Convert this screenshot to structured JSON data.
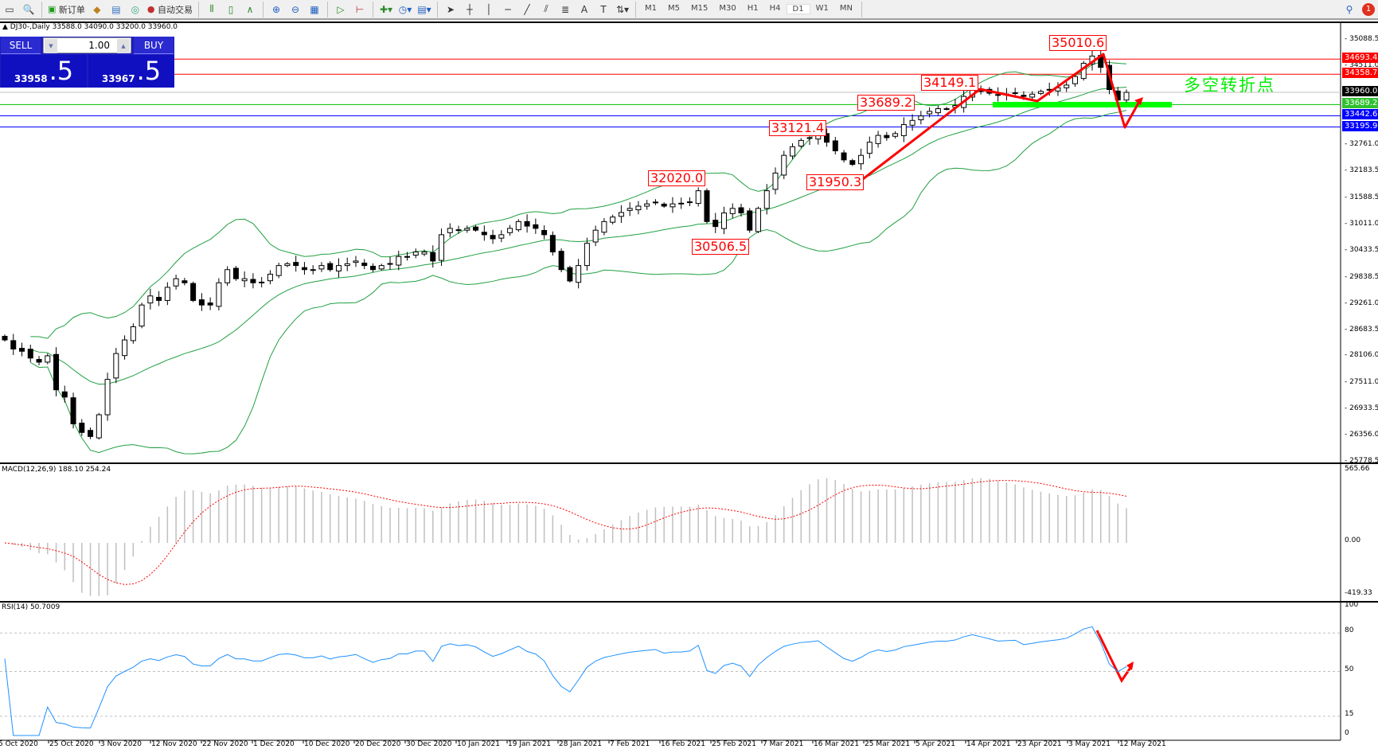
{
  "toolbar": {
    "new_order": "新订单",
    "auto_trading": "自动交易",
    "timeframes": [
      "M1",
      "M5",
      "M15",
      "M30",
      "H1",
      "H4",
      "D1",
      "W1",
      "MN"
    ],
    "active_timeframe": "D1",
    "notification_count": "1"
  },
  "chart": {
    "info": "DJ30-,Daily  33588.0 34090.0 33200.0 33960.0",
    "trade_panel": {
      "sell_label": "SELL",
      "buy_label": "BUY",
      "lot": "1.00",
      "sell_small": "33958",
      "sell_big": ".5",
      "buy_small": "33967",
      "buy_big": ".5"
    },
    "annotations": [
      "35010.6",
      "34149.1",
      "33689.2",
      "33121.4",
      "32020.0",
      "31950.3",
      "30506.5"
    ],
    "note": "多空转折点",
    "price_axis": [
      "35088.5",
      "34511.0",
      "32761.0",
      "32183.5",
      "31588.5",
      "31011.0",
      "30433.5",
      "29838.5",
      "29261.0",
      "28683.5",
      "28106.0",
      "27511.0",
      "26933.5",
      "26356.0",
      "25778.5"
    ],
    "levels": [
      {
        "price": "34693.4",
        "color": "#ff0000"
      },
      {
        "price": "34358.7",
        "color": "#ff0000"
      },
      {
        "price": "33960.0",
        "color": "#c0c0c0",
        "label_bg": "#000000"
      },
      {
        "price": "33689.2",
        "color": "#00c000",
        "label_bg": "#30c030"
      },
      {
        "price": "33442.6",
        "color": "#0000ff"
      },
      {
        "price": "33195.9",
        "color": "#0000ff"
      }
    ],
    "colors": {
      "bands": "#20a040",
      "arrows": "#ff0000",
      "zone": "#00ff00",
      "note": "#00ff00"
    }
  },
  "macd": {
    "label": "MACD(12,26,9) 188.10 254.24",
    "axis": [
      "565.66",
      "0.00",
      "-419.33"
    ],
    "colors": {
      "hist": "#c0c0c0",
      "signal": "#ff0000"
    }
  },
  "rsi": {
    "label": "RSI(14) 50.7009",
    "axis": [
      "100",
      "80",
      "50",
      "15",
      "0"
    ],
    "levels": [
      80,
      50,
      15
    ],
    "color": "#1e90ff"
  },
  "date_axis": [
    "5 Oct 2020",
    "25 Oct 2020",
    "3 Nov 2020",
    "12 Nov 2020",
    "22 Nov 2020",
    "1 Dec 2020",
    "10 Dec 2020",
    "20 Dec 2020",
    "30 Dec 2020",
    "10 Jan 2021",
    "19 Jan 2021",
    "28 Jan 2021",
    "7 Feb 2021",
    "16 Feb 2021",
    "25 Feb 2021",
    "7 Mar 2021",
    "16 Mar 2021",
    "25 Mar 2021",
    "5 Apr 2021",
    "14 Apr 2021",
    "23 Apr 2021",
    "3 May 2021",
    "12 May 2021"
  ],
  "chart_data": {
    "type": "candlestick",
    "symbol": "DJ30-",
    "timeframe": "Daily",
    "ylim": [
      25778.5,
      35088.5
    ],
    "closes": [
      28500,
      28300,
      28250,
      28100,
      28010,
      28150,
      27400,
      27240,
      26650,
      26460,
      26370,
      26850,
      27630,
      28200,
      28500,
      28790,
      29270,
      29470,
      29370,
      29660,
      29850,
      29760,
      29370,
      29270,
      29270,
      29760,
      30050,
      29850,
      29850,
      29760,
      29760,
      29950,
      30140,
      30180,
      30140,
      30050,
      30050,
      30140,
      30050,
      30140,
      30180,
      30240,
      30140,
      30050,
      30140,
      30180,
      30340,
      30340,
      30440,
      30440,
      30240,
      30820,
      30960,
      30920,
      30960,
      30920,
      30820,
      30730,
      30820,
      30960,
      31110,
      31010,
      30960,
      30820,
      30440,
      30050,
      29800,
      30140,
      30630,
      30920,
      31110,
      31210,
      31310,
      31400,
      31450,
      31500,
      31540,
      31450,
      31500,
      31500,
      31540,
      31790,
      31110,
      31000,
      31300,
      31400,
      31300,
      30920,
      31400,
      31790,
      32180,
      32570,
      32760,
      32900,
      32960,
      33050,
      32860,
      32670,
      32470,
      32370,
      32570,
      32860,
      33010,
      32960,
      33050,
      33250,
      33340,
      33440,
      33540,
      33600,
      33600,
      33670,
      33870,
      34020,
      33980,
      33940,
      33900,
      33920,
      33940,
      33870,
      33920,
      33980,
      34020,
      34060,
      34120,
      34310,
      34600,
      34760,
      34510,
      34020,
      33790,
      33960
    ]
  }
}
